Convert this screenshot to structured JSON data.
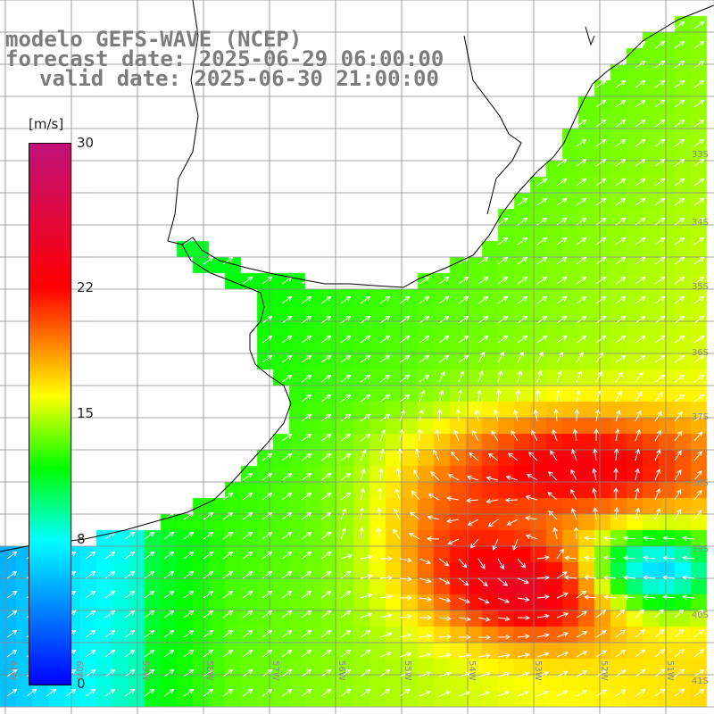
{
  "header": {
    "line1": "modelo GEFS-WAVE (NCEP)",
    "line2": "forecast date: 2025-06-29 06:00:00",
    "line3": "valid date: 2025-06-30 21:00:00"
  },
  "colorbar": {
    "units": "[m/s]",
    "min": 0,
    "max": 30,
    "labels": [
      "30",
      "22",
      "15",
      "8",
      "0"
    ],
    "label_values": [
      30,
      22,
      15,
      8,
      0
    ],
    "colors": [
      "#0000ff",
      "#00ffff",
      "#00ff00",
      "#ffff00",
      "#ff0000",
      "#c0107a"
    ]
  },
  "map": {
    "lat_labels": [
      "33S",
      "34S",
      "35S",
      "36S",
      "37S",
      "38S",
      "39S",
      "40S",
      "41S"
    ],
    "lon_labels": [
      "61W",
      "60W",
      "59W",
      "58W",
      "57W",
      "56W",
      "55W",
      "54W",
      "53W",
      "52W",
      "51W"
    ],
    "land_color": "#ffffff",
    "coast_color": "#000000",
    "grid_color": "#888888",
    "arrow_color": "#ffffff"
  }
}
